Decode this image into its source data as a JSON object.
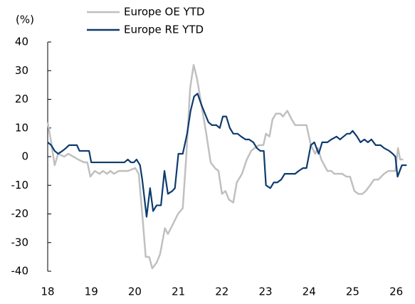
{
  "chart_data": {
    "type": "line",
    "y_unit_label": "(%)",
    "xlim": [
      18,
      26.3
    ],
    "xticks": [
      18,
      19,
      20,
      21,
      22,
      23,
      24,
      25,
      26
    ],
    "ylim": [
      -40,
      40
    ],
    "yticks": [
      -40,
      -30,
      -20,
      -10,
      0,
      10,
      20,
      30,
      40
    ],
    "series": [
      {
        "name": "Europe OE YTD",
        "color": "#c0c0c0",
        "x": [
          18.0,
          18.08,
          18.16,
          18.24,
          18.38,
          18.47,
          18.59,
          18.7,
          18.83,
          18.91,
          18.98,
          19.08,
          19.19,
          19.27,
          19.36,
          19.44,
          19.52,
          19.63,
          19.84,
          20.01,
          20.09,
          20.17,
          20.25,
          20.33,
          20.4,
          20.5,
          20.58,
          20.69,
          20.76,
          20.86,
          20.99,
          21.1,
          21.18,
          21.27,
          21.35,
          21.43,
          21.53,
          21.64,
          21.74,
          21.84,
          21.92,
          22.0,
          22.08,
          22.16,
          22.26,
          22.34,
          22.42,
          22.46,
          22.57,
          22.67,
          22.75,
          22.85,
          22.95,
          23.01,
          23.09,
          23.16,
          23.24,
          23.34,
          23.4,
          23.5,
          23.6,
          23.68,
          23.84,
          23.94,
          24.04,
          24.14,
          24.2,
          24.28,
          24.42,
          24.51,
          24.58,
          24.76,
          24.86,
          24.94,
          25.04,
          25.13,
          25.22,
          25.3,
          25.4,
          25.49,
          25.59,
          25.72,
          25.82,
          25.98,
          26.04,
          26.09,
          26.16
        ],
        "values": [
          12,
          5,
          -3,
          1,
          0,
          1,
          0,
          -1,
          -2,
          -2,
          -7,
          -5,
          -6,
          -5,
          -6,
          -5,
          -6,
          -5,
          -5,
          -4,
          -6,
          -20,
          -35,
          -35,
          -39,
          -37,
          -34,
          -25,
          -27,
          -24,
          -20,
          -18,
          0,
          24,
          32,
          27,
          18,
          8,
          -2,
          -4,
          -5,
          -13,
          -12,
          -15,
          -16,
          -9,
          -7,
          -6,
          -1,
          2,
          3,
          4,
          4,
          8,
          7,
          13,
          15,
          15,
          14,
          16,
          13,
          11,
          11,
          11,
          4,
          1,
          3,
          -1,
          -5,
          -5,
          -6,
          -6,
          -7,
          -7,
          -12,
          -13,
          -13,
          -12,
          -10,
          -8,
          -8,
          -6,
          -5,
          -5,
          3,
          -1,
          -1
        ]
      },
      {
        "name": "Europe RE YTD",
        "color": "#0d3b6e",
        "x": [
          18.0,
          18.08,
          18.16,
          18.24,
          18.34,
          18.42,
          18.49,
          18.59,
          18.67,
          18.73,
          18.95,
          19.0,
          19.76,
          19.84,
          19.91,
          19.98,
          20.04,
          20.12,
          20.17,
          20.27,
          20.35,
          20.42,
          20.5,
          20.6,
          20.68,
          20.76,
          20.86,
          20.92,
          21.0,
          21.1,
          21.2,
          21.28,
          21.36,
          21.44,
          21.53,
          21.61,
          21.69,
          21.77,
          21.87,
          21.95,
          22.02,
          22.1,
          22.18,
          22.26,
          22.36,
          22.44,
          22.54,
          22.62,
          22.72,
          22.8,
          22.88,
          22.96,
          23.01,
          23.11,
          23.19,
          23.27,
          23.36,
          23.44,
          23.6,
          23.68,
          23.76,
          23.86,
          23.94,
          24.04,
          24.12,
          24.22,
          24.3,
          24.42,
          24.51,
          24.63,
          24.71,
          24.79,
          24.87,
          24.94,
          25.0,
          25.1,
          25.18,
          25.27,
          25.35,
          25.43,
          25.53,
          25.64,
          25.72,
          25.84,
          25.92,
          25.98,
          26.03,
          26.13,
          26.24
        ],
        "values": [
          5,
          4,
          2,
          1,
          2,
          3,
          4,
          4,
          4,
          2,
          2,
          -2,
          -2,
          -1,
          -2,
          -2,
          -1,
          -3,
          -8,
          -21,
          -11,
          -19,
          -17,
          -17,
          -5,
          -13,
          -12,
          -11,
          1,
          1,
          8,
          16,
          21,
          22,
          18,
          15,
          12,
          11,
          11,
          10,
          14,
          14,
          10,
          8,
          8,
          7,
          6,
          6,
          5,
          3,
          2,
          2,
          -10,
          -11,
          -9,
          -9,
          -8,
          -6,
          -6,
          -6,
          -5,
          -4,
          -4,
          4,
          5,
          1,
          5,
          5,
          6,
          7,
          6,
          7,
          8,
          8,
          9,
          7,
          5,
          6,
          5,
          6,
          4,
          4,
          3,
          2,
          1,
          0,
          -7,
          -3,
          -3
        ]
      }
    ]
  }
}
